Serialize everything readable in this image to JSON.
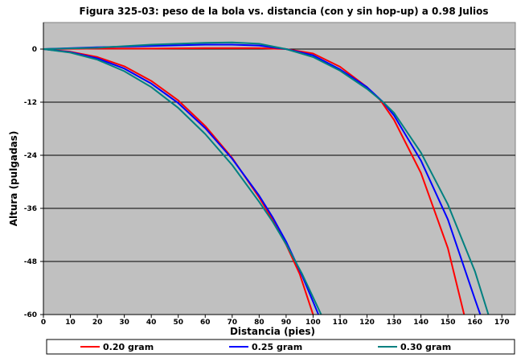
{
  "chart_data": {
    "type": "line",
    "title": "Figura 325-03: peso de la bola vs. distancia (con y sin hop-up) a 0.98 Julios",
    "xlabel": "Distancia (pies)",
    "ylabel": "Altura (pulgadas)",
    "xlim": [
      0,
      175
    ],
    "ylim": [
      -60,
      6
    ],
    "x_ticks": [
      0,
      10,
      20,
      30,
      40,
      50,
      60,
      70,
      80,
      90,
      100,
      110,
      120,
      130,
      140,
      150,
      160,
      170
    ],
    "y_ticks": [
      0,
      -12,
      -24,
      -36,
      -48,
      -60
    ],
    "grid": "horizontal",
    "plot_background": "#c0c0c0",
    "legend_position": "bottom",
    "series": [
      {
        "name": "0.20 gram",
        "color": "#ff0000",
        "curves": [
          [
            [
              0,
              0
            ],
            [
              10,
              -0.6
            ],
            [
              20,
              -1.8
            ],
            [
              30,
              -3.9
            ],
            [
              40,
              -7.2
            ],
            [
              50,
              -11.6
            ],
            [
              60,
              -17.4
            ],
            [
              70,
              -24.6
            ],
            [
              80,
              -33.5
            ],
            [
              85,
              -38.6
            ],
            [
              90,
              -44.2
            ],
            [
              95,
              -50.8
            ],
            [
              100,
              -60
            ]
          ],
          [
            [
              0,
              0
            ],
            [
              20,
              0.1
            ],
            [
              40,
              0.1
            ],
            [
              60,
              0.2
            ],
            [
              80,
              0.2
            ],
            [
              90,
              0
            ],
            [
              100,
              -1
            ],
            [
              110,
              -4
            ],
            [
              120,
              -8.6
            ],
            [
              125,
              -11.6
            ],
            [
              130,
              -16
            ],
            [
              140,
              -28
            ],
            [
              150,
              -45
            ],
            [
              156,
              -60
            ]
          ]
        ]
      },
      {
        "name": "0.25 gram",
        "color": "#0000ff",
        "curves": [
          [
            [
              0,
              0
            ],
            [
              10,
              -0.7
            ],
            [
              20,
              -2.1
            ],
            [
              30,
              -4.4
            ],
            [
              40,
              -7.8
            ],
            [
              50,
              -12.2
            ],
            [
              60,
              -17.9
            ],
            [
              70,
              -24.8
            ],
            [
              80,
              -33.1
            ],
            [
              85,
              -38
            ],
            [
              90,
              -43.5
            ],
            [
              96,
              -51.3
            ],
            [
              102,
              -60
            ]
          ],
          [
            [
              0,
              0
            ],
            [
              20,
              0.4
            ],
            [
              40,
              0.7
            ],
            [
              60,
              1
            ],
            [
              70,
              1
            ],
            [
              80,
              0.8
            ],
            [
              90,
              0
            ],
            [
              100,
              -1.4
            ],
            [
              110,
              -4.6
            ],
            [
              120,
              -8.6
            ],
            [
              126,
              -12
            ],
            [
              130,
              -15
            ],
            [
              140,
              -25.2
            ],
            [
              150,
              -38.5
            ],
            [
              160,
              -56.5
            ],
            [
              162,
              -60
            ]
          ]
        ]
      },
      {
        "name": "0.30 gram",
        "color": "#008080",
        "curves": [
          [
            [
              0,
              0
            ],
            [
              10,
              -0.8
            ],
            [
              20,
              -2.4
            ],
            [
              30,
              -5
            ],
            [
              40,
              -8.6
            ],
            [
              50,
              -13.3
            ],
            [
              60,
              -19.2
            ],
            [
              70,
              -26.2
            ],
            [
              80,
              -34.5
            ],
            [
              85,
              -39
            ],
            [
              90,
              -44.1
            ],
            [
              96,
              -50.9
            ],
            [
              103,
              -60
            ]
          ],
          [
            [
              0,
              0
            ],
            [
              20,
              0.3
            ],
            [
              40,
              1
            ],
            [
              60,
              1.4
            ],
            [
              70,
              1.5
            ],
            [
              80,
              1.2
            ],
            [
              90,
              0
            ],
            [
              100,
              -1.8
            ],
            [
              110,
              -4.9
            ],
            [
              120,
              -9
            ],
            [
              126,
              -12
            ],
            [
              130,
              -14.4
            ],
            [
              140,
              -23.4
            ],
            [
              150,
              -35.1
            ],
            [
              160,
              -50.2
            ],
            [
              165,
              -60
            ]
          ]
        ]
      }
    ]
  }
}
